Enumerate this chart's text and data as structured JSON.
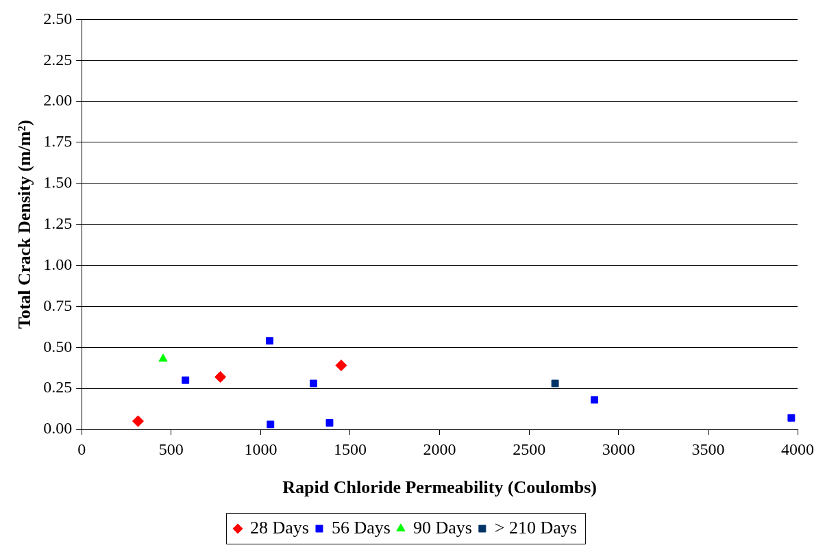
{
  "chart_data": {
    "type": "scatter",
    "xlabel": "Rapid Chloride Permeability (Coulombs)",
    "ylabel": "Total Crack Density (m/m²)",
    "xlim": [
      0,
      4000
    ],
    "xticks": [
      0,
      500,
      1000,
      1500,
      2000,
      2500,
      3000,
      3500,
      4000
    ],
    "ylim": [
      0,
      2.5
    ],
    "yticks": [
      {
        "value": 0,
        "label": "0.00"
      },
      0.25,
      {
        "value": 0.5,
        "label": "0.50"
      },
      0.75,
      {
        "value": 1,
        "label": "1.00"
      },
      1.25,
      {
        "value": 1.5,
        "label": "1.50"
      },
      1.75,
      {
        "value": 2,
        "label": "2.00"
      },
      2.25,
      {
        "value": 2.5,
        "label": "2.50"
      }
    ],
    "grid": "y",
    "legend": "bottom",
    "series": [
      {
        "name": "28 Days",
        "color": "#ff0000",
        "marker": "diamond",
        "x": [
          315,
          775,
          1450
        ],
        "values": [
          0.05,
          0.32,
          0.39
        ]
      },
      {
        "name": "56 Days",
        "color": "#0000ff",
        "marker": "square",
        "x": [
          580,
          1050,
          1055,
          1295,
          1385,
          2865,
          3965
        ],
        "values": [
          0.3,
          0.54,
          0.03,
          0.28,
          0.04,
          0.18,
          0.07
        ]
      },
      {
        "name": "90 Days",
        "color": "#00ff00",
        "marker": "triangle",
        "x": [
          455
        ],
        "values": [
          0.43
        ]
      },
      {
        "name": "> 210 Days",
        "color": "#003366",
        "marker": "square",
        "x": [
          2645
        ],
        "values": [
          0.28
        ]
      }
    ]
  }
}
